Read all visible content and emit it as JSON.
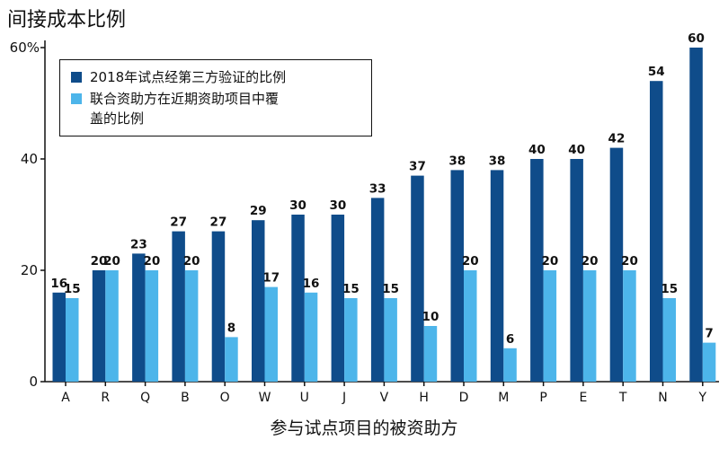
{
  "chart_data": {
    "type": "bar",
    "title": "间接成本比例",
    "xlabel": "参与试点项目的被资助方",
    "ylabel": "",
    "ylim": [
      0,
      60
    ],
    "yticks": [
      0,
      20,
      40
    ],
    "ytick_top_label": "60%",
    "grid": false,
    "legend_position": "top-left",
    "categories": [
      "A",
      "R",
      "Q",
      "B",
      "O",
      "W",
      "U",
      "J",
      "V",
      "H",
      "D",
      "M",
      "P",
      "E",
      "T",
      "N",
      "Y"
    ],
    "series": [
      {
        "name": "2018年试点经第三方验证的比例",
        "color": "#0f4c8a",
        "values": [
          16,
          20,
          23,
          27,
          27,
          29,
          30,
          30,
          33,
          37,
          38,
          38,
          40,
          40,
          42,
          54,
          60
        ],
        "labels": [
          "16",
          "20",
          "23",
          "27",
          "27",
          "29",
          "30",
          "30",
          "33",
          "37",
          "38",
          "38",
          "40",
          "40",
          "42",
          "54",
          "60"
        ]
      },
      {
        "name": "联合资助方在近期资助项目中覆盖的比例",
        "color": "#4db5ea",
        "values": [
          15,
          20,
          20,
          20,
          8,
          17,
          16,
          15,
          15,
          10,
          20,
          6,
          20,
          20,
          20,
          15,
          7
        ],
        "labels": [
          "15",
          "20",
          "20",
          "20",
          "8",
          "17",
          "16",
          "15",
          "15",
          "10",
          "20",
          "6",
          "20",
          "20",
          "20",
          "15",
          "7"
        ]
      }
    ]
  },
  "legend": {
    "item1_label": "2018年试点经第三方验证的比例",
    "item2_line1": "联合资助方在近期资助项目中覆",
    "item2_line2": "盖的比例"
  }
}
